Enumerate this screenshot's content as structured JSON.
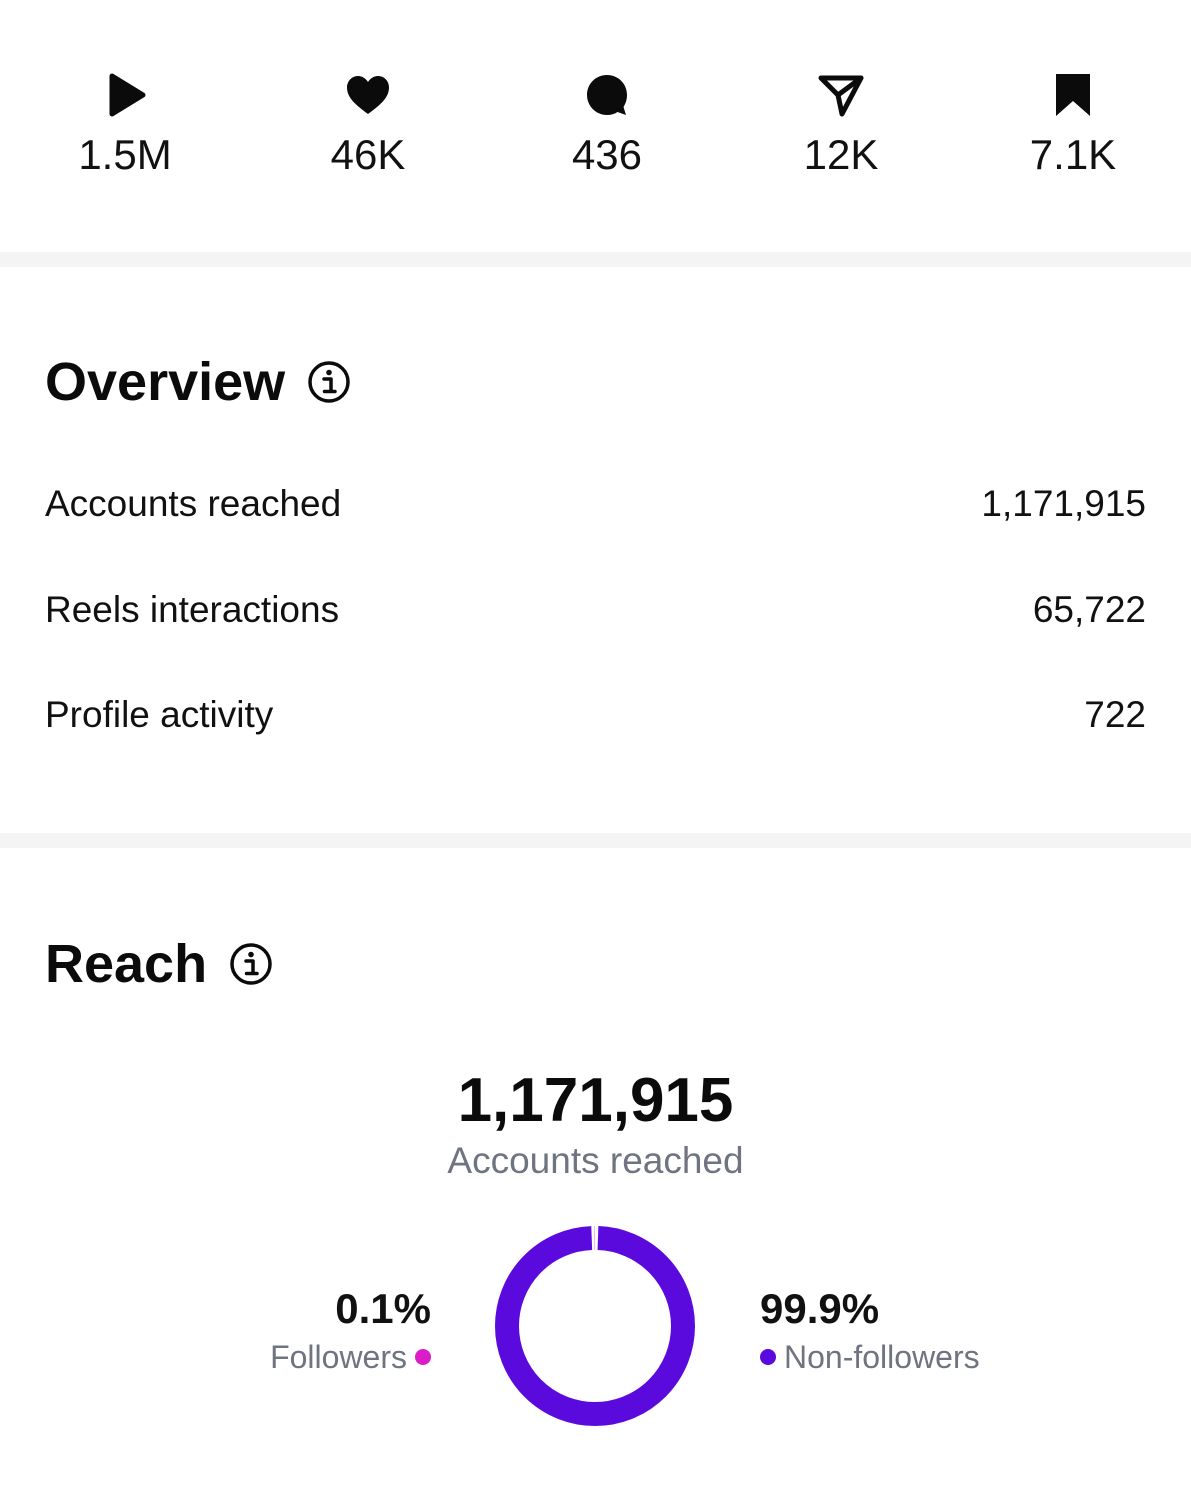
{
  "stats": [
    {
      "icon": "play-icon",
      "value": "1.5M"
    },
    {
      "icon": "heart-icon",
      "value": "46K"
    },
    {
      "icon": "comment-icon",
      "value": "436"
    },
    {
      "icon": "share-icon",
      "value": "12K"
    },
    {
      "icon": "bookmark-icon",
      "value": "7.1K"
    }
  ],
  "overview": {
    "title": "Overview",
    "rows": [
      {
        "label": "Accounts reached",
        "value": "1,171,915"
      },
      {
        "label": "Reels interactions",
        "value": "65,722"
      },
      {
        "label": "Profile activity",
        "value": "722"
      }
    ]
  },
  "reach": {
    "title": "Reach",
    "total": "1,171,915",
    "total_label": "Accounts reached",
    "followers": {
      "percent": "0.1%",
      "label": "Followers",
      "color": "#d91ec9",
      "fraction": 0.001
    },
    "non_followers": {
      "percent": "99.9%",
      "label": "Non-followers",
      "color": "#5b0ade",
      "fraction": 0.999
    }
  },
  "colors": {
    "divider": "#f4f4f5",
    "secondary_text": "#6e7480",
    "donut": "#5b0ade"
  }
}
